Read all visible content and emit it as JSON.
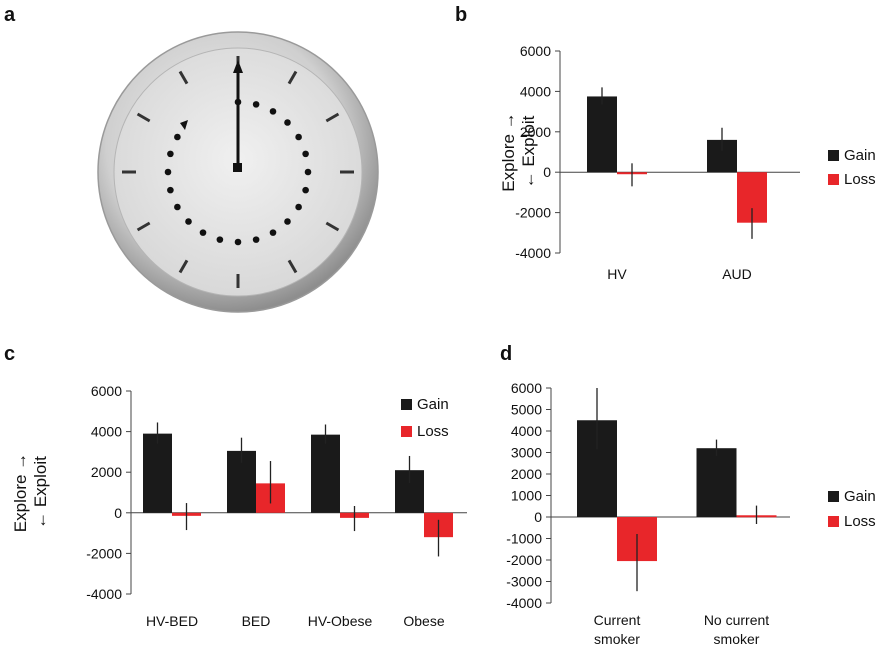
{
  "panels": {
    "a": "a",
    "b": "b",
    "c": "c",
    "d": "d"
  },
  "colors": {
    "gain": "#1a1a1a",
    "loss": "#e8262a"
  },
  "chart_data": [
    {
      "panel": "b",
      "type": "bar",
      "categories": [
        "HV",
        "AUD"
      ],
      "series": [
        {
          "name": "Gain",
          "values": [
            3750,
            1600
          ],
          "errors": [
            450,
            600
          ]
        },
        {
          "name": "Loss",
          "values": [
            -100,
            -2500
          ],
          "errors": [
            600,
            800
          ]
        }
      ],
      "ylabel_line1": "Explore →",
      "ylabel_line2": "← Exploit",
      "ylim": [
        -4000,
        6000
      ],
      "yticks": [
        "6000",
        "4000",
        "2000",
        "0",
        "-2000",
        "-4000"
      ],
      "legend_position": "right"
    },
    {
      "panel": "c",
      "type": "bar",
      "categories": [
        "HV-BED",
        "BED",
        "HV-Obese",
        "Obese"
      ],
      "series": [
        {
          "name": "Gain",
          "values": [
            3900,
            3050,
            3850,
            2100
          ],
          "errors": [
            550,
            650,
            500,
            700
          ]
        },
        {
          "name": "Loss",
          "values": [
            -150,
            1450,
            -250,
            -1200
          ],
          "errors": [
            700,
            1100,
            650,
            950
          ]
        }
      ],
      "ylabel_line1": "Explore →",
      "ylabel_line2": "← Exploit",
      "ylim": [
        -4000,
        6000
      ],
      "yticks": [
        "6000",
        "4000",
        "2000",
        "0",
        "-2000",
        "-4000"
      ],
      "legend_position": "top-right"
    },
    {
      "panel": "d",
      "type": "bar",
      "categories": [
        "Current smoker",
        "No current smoker"
      ],
      "series": [
        {
          "name": "Gain",
          "values": [
            4500,
            3200
          ],
          "errors": [
            1500,
            400
          ]
        },
        {
          "name": "Loss",
          "values": [
            -2050,
            80
          ],
          "errors": [
            1400,
            450
          ]
        }
      ],
      "ylim": [
        -4000,
        6000
      ],
      "yticks": [
        "6000",
        "5000",
        "4000",
        "3000",
        "2000",
        "1000",
        "0",
        "-1000",
        "-2000",
        "-3000",
        "-4000"
      ],
      "legend_position": "right"
    }
  ]
}
